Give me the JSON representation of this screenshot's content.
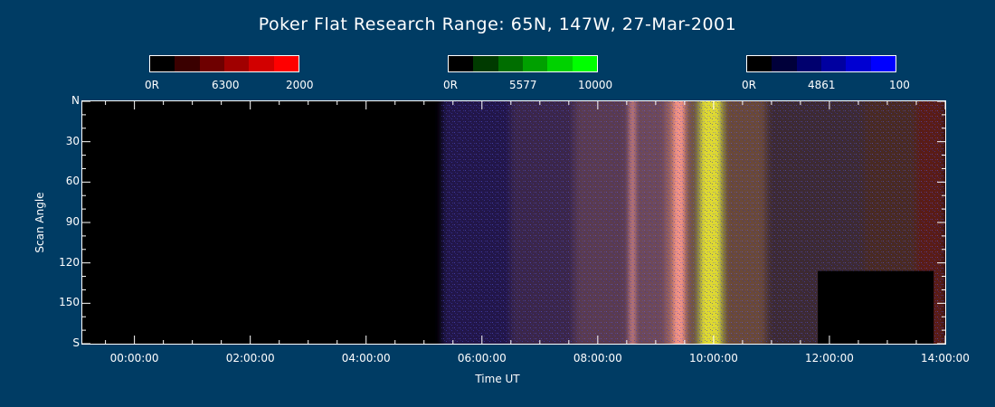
{
  "chart_data": {
    "type": "heatmap",
    "title": "Poker Flat Research Range: 65N, 147W, 27-Mar-2001",
    "xlabel": "Time UT",
    "ylabel": "Scan Angle",
    "xlim_hours": [
      -0.9,
      14.0
    ],
    "x_ticks": [
      "00:00:00",
      "02:00:00",
      "04:00:00",
      "06:00:00",
      "08:00:00",
      "10:00:00",
      "12:00:00",
      "14:00:00"
    ],
    "x_tick_hours": [
      0,
      2,
      4,
      6,
      8,
      10,
      12,
      14
    ],
    "y_ticks": [
      "N",
      "30",
      "60",
      "90",
      "120",
      "150",
      "S"
    ],
    "y_tick_values": [
      0,
      30,
      60,
      90,
      120,
      150,
      180
    ],
    "ylim": [
      0,
      180
    ],
    "colorbars": [
      {
        "name": "6300",
        "min_label": "0R",
        "max_label": "2000",
        "colors": [
          "#000000",
          "#3a0000",
          "#6e0000",
          "#a00000",
          "#d20000",
          "#ff0000"
        ]
      },
      {
        "name": "5577",
        "min_label": "0R",
        "max_label": "10000",
        "colors": [
          "#000000",
          "#003a00",
          "#006e00",
          "#00a000",
          "#00d200",
          "#00ff00"
        ]
      },
      {
        "name": "4861",
        "min_label": "0R",
        "max_label": "100",
        "colors": [
          "#000000",
          "#00003a",
          "#00006e",
          "#0000a0",
          "#0000d2",
          "#0000ff"
        ]
      }
    ],
    "data_start_hour": 5.3,
    "bands": [
      {
        "start_hour": 5.3,
        "end_hour": 6.5,
        "color": "#22144a"
      },
      {
        "start_hour": 6.5,
        "end_hour": 7.6,
        "color": "#3a2848"
      },
      {
        "start_hour": 7.6,
        "end_hour": 8.5,
        "color": "#5a3a50"
      },
      {
        "start_hour": 8.5,
        "end_hour": 9.2,
        "color": "#6e4a58"
      },
      {
        "start_hour": 9.2,
        "end_hour": 9.55,
        "color": "#a86a60"
      },
      {
        "start_hour": 9.55,
        "end_hour": 9.75,
        "color": "#6a5040"
      },
      {
        "start_hour": 9.75,
        "end_hour": 10.15,
        "color": "#b0b040"
      },
      {
        "start_hour": 10.15,
        "end_hour": 10.9,
        "color": "#6a4838"
      },
      {
        "start_hour": 10.9,
        "end_hour": 12.6,
        "color": "#3e2a30"
      },
      {
        "start_hour": 12.6,
        "end_hour": 13.5,
        "color": "#4a2a22"
      },
      {
        "start_hour": 13.5,
        "end_hour": 14.0,
        "color": "#5a1a18"
      }
    ],
    "arcs": [
      {
        "hour": 8.6,
        "color": "#c07a7a",
        "width_hours": 0.12
      },
      {
        "hour": 9.4,
        "color": "#ff9a8a",
        "width_hours": 0.18
      },
      {
        "hour": 9.95,
        "color": "#e6e030",
        "width_hours": 0.3
      }
    ],
    "no_data_boxes": [
      {
        "start_hour": 11.8,
        "end_hour": 13.8,
        "angle_start": 126,
        "angle_end": 180
      }
    ]
  }
}
